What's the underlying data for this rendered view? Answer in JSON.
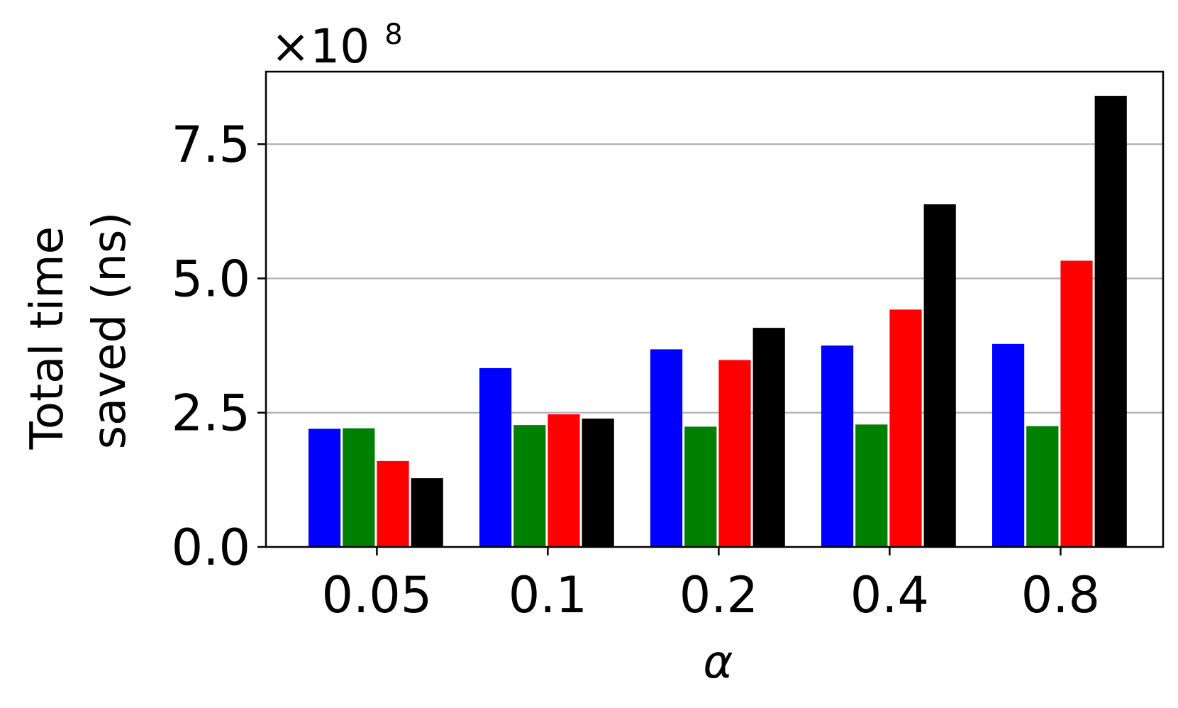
{
  "chart_data": {
    "type": "bar",
    "categories": [
      "0.05",
      "0.1",
      "0.2",
      "0.4",
      "0.8"
    ],
    "series": [
      {
        "color": "#0000ff",
        "values": [
          2.2,
          3.33,
          3.68,
          3.75,
          3.78
        ]
      },
      {
        "color": "#008000",
        "values": [
          2.21,
          2.27,
          2.24,
          2.28,
          2.25
        ]
      },
      {
        "color": "#ff0000",
        "values": [
          1.6,
          2.47,
          3.48,
          4.42,
          5.33
        ]
      },
      {
        "color": "#000000",
        "values": [
          1.28,
          2.39,
          4.08,
          6.38,
          8.4
        ]
      }
    ],
    "xlabel": "α",
    "ylabel_lines": [
      "Total time",
      "saved (ns)"
    ],
    "offset_base": "×10",
    "offset_exponent": "8",
    "yticks": [
      0.0,
      2.5,
      5.0,
      7.5
    ],
    "ytick_labels": [
      "0.0",
      "2.5",
      "5.0",
      "7.5"
    ],
    "ylim": [
      0,
      8.85
    ],
    "grid": "y-major"
  }
}
